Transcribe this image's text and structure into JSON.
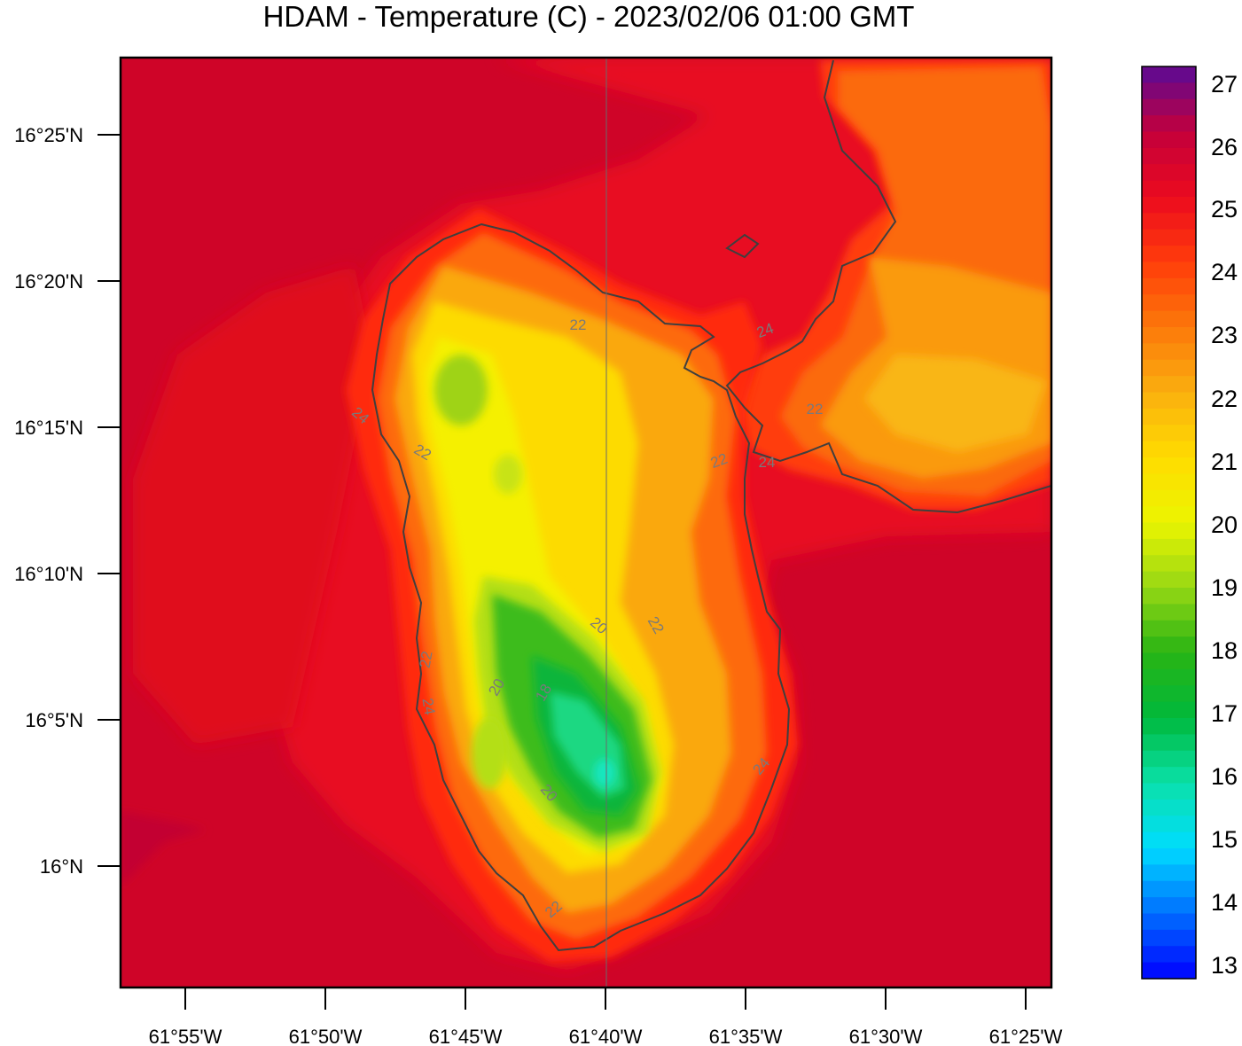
{
  "title": "HDAM - Temperature (C)  -  2023/02/06  01:00 GMT",
  "x_tick_labels": [
    "61°55'W",
    "61°50'W",
    "61°45'W",
    "61°40'W",
    "61°35'W",
    "61°30'W",
    "61°25'W"
  ],
  "y_tick_labels": [
    "16°25'N",
    "16°20'N",
    "16°15'N",
    "16°10'N",
    "16°5'N",
    "16°N"
  ],
  "colorbar": {
    "labels": [
      "27",
      "26",
      "25",
      "24",
      "23",
      "22",
      "21",
      "20",
      "19",
      "18",
      "17",
      "16",
      "15",
      "14",
      "13"
    ],
    "min": 13,
    "max": 27,
    "step": 0.25
  },
  "contour_labels": [
    "22",
    "22",
    "22",
    "22",
    "22",
    "22",
    "22",
    "24",
    "24",
    "24",
    "24",
    "24",
    "20",
    "20",
    "20",
    "18"
  ],
  "colors": {
    "sea": "#cf0428",
    "warm": "#e81022",
    "frame": "#000000",
    "coast": "#3f3f3f"
  }
}
